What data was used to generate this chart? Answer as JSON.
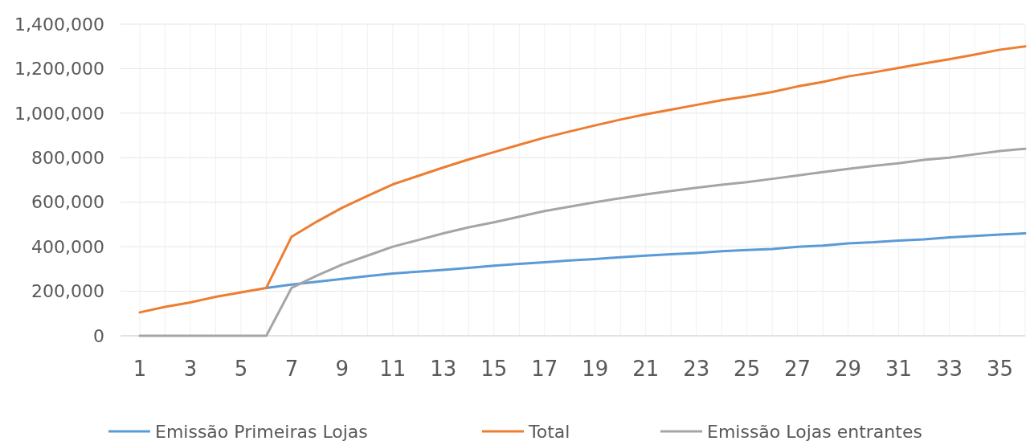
{
  "chart_data": {
    "type": "line",
    "x": [
      1,
      2,
      3,
      4,
      5,
      6,
      7,
      8,
      9,
      10,
      11,
      12,
      13,
      14,
      15,
      16,
      17,
      18,
      19,
      20,
      21,
      22,
      23,
      24,
      25,
      26,
      27,
      28,
      29,
      30,
      31,
      32,
      33,
      34,
      35,
      36
    ],
    "xlim": [
      1,
      36
    ],
    "xticks": [
      1,
      3,
      5,
      7,
      9,
      11,
      13,
      15,
      17,
      19,
      21,
      23,
      25,
      27,
      29,
      31,
      33,
      35
    ],
    "ylim": [
      0,
      1400000
    ],
    "yticks": [
      {
        "value": 0,
        "label": "0"
      },
      {
        "value": 200000,
        "label": "200,000"
      },
      {
        "value": 400000,
        "label": "400,000"
      },
      {
        "value": 600000,
        "label": "600,000"
      },
      {
        "value": 800000,
        "label": "800,000"
      },
      {
        "value": 1000000,
        "label": "1,000,000"
      },
      {
        "value": 1200000,
        "label": "1,200,000"
      },
      {
        "value": 1400000,
        "label": "1,400,000"
      }
    ],
    "grid": true,
    "legend": "bottom",
    "marker": "none",
    "line_style": "solid",
    "series": [
      {
        "name": "Emissão Primeiras Lojas",
        "color": "#5b9bd5",
        "values": [
          null,
          null,
          null,
          null,
          null,
          215000,
          230000,
          243000,
          255000,
          268000,
          280000,
          288000,
          296000,
          305000,
          315000,
          323000,
          330000,
          338000,
          345000,
          353000,
          360000,
          366000,
          372000,
          380000,
          385000,
          390000,
          400000,
          405000,
          415000,
          420000,
          428000,
          433000,
          442000,
          448000,
          455000,
          460000
        ]
      },
      {
        "name": "Total",
        "color": "#ed7d31",
        "values": [
          105000,
          130000,
          150000,
          175000,
          195000,
          215000,
          445000,
          513000,
          575000,
          628000,
          680000,
          718000,
          756000,
          792000,
          825000,
          858000,
          890000,
          918000,
          945000,
          971000,
          995000,
          1016000,
          1037000,
          1058000,
          1075000,
          1095000,
          1120000,
          1140000,
          1165000,
          1183000,
          1203000,
          1223000,
          1242000,
          1263000,
          1285000,
          1300000
        ]
      },
      {
        "name": "Emissão Lojas entrantes",
        "color": "#a5a5a5",
        "values": [
          0,
          0,
          0,
          0,
          0,
          0,
          215000,
          270000,
          320000,
          360000,
          400000,
          430000,
          460000,
          487000,
          510000,
          535000,
          560000,
          580000,
          600000,
          618000,
          635000,
          650000,
          665000,
          678000,
          690000,
          705000,
          720000,
          735000,
          750000,
          763000,
          775000,
          790000,
          800000,
          815000,
          830000,
          840000
        ]
      }
    ]
  }
}
